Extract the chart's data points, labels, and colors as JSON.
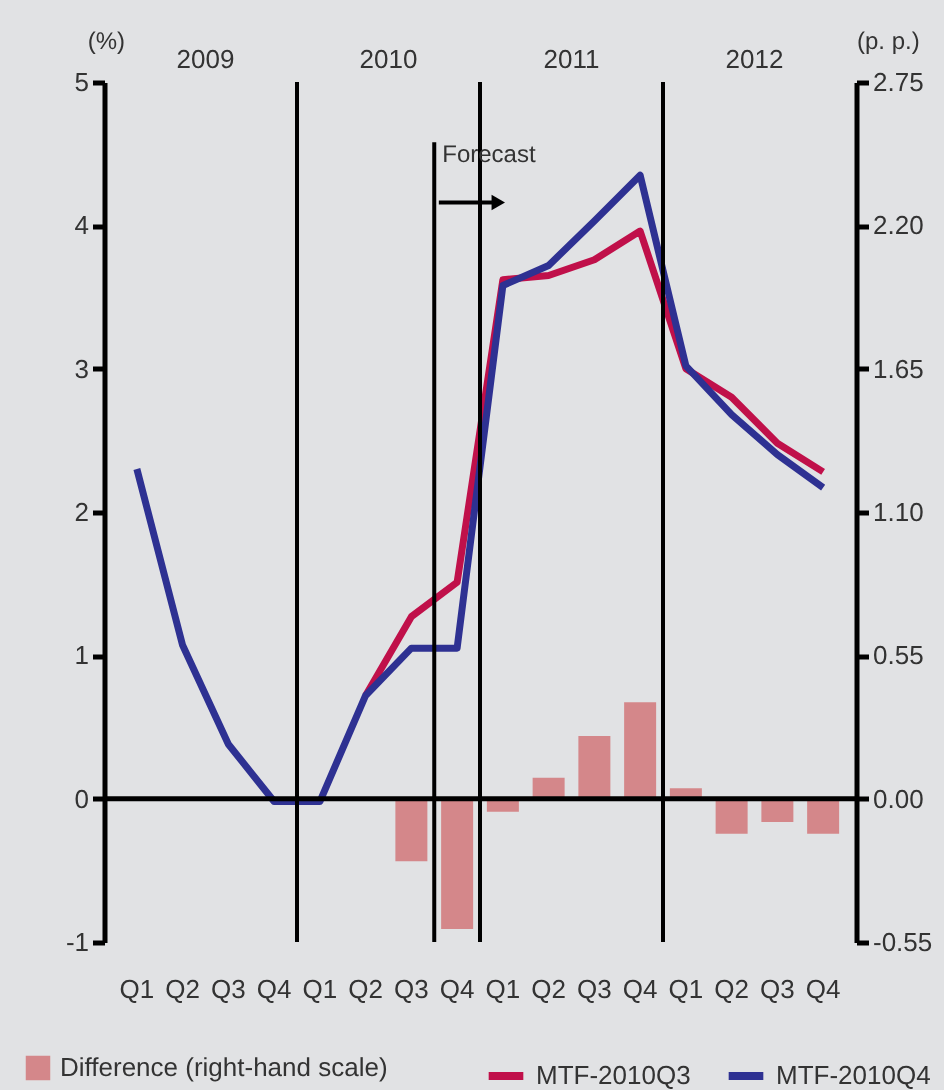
{
  "chart_data": {
    "type": "line",
    "categories": [
      "Q1",
      "Q2",
      "Q3",
      "Q4",
      "Q1",
      "Q2",
      "Q3",
      "Q4",
      "Q1",
      "Q2",
      "Q3",
      "Q4",
      "Q1",
      "Q2",
      "Q3",
      "Q4"
    ],
    "series": [
      {
        "name": "Difference (right-hand scale)",
        "type": "bar",
        "axis": "y2",
        "color": "#d4878a",
        "values": [
          null,
          null,
          null,
          null,
          null,
          null,
          -0.24,
          -0.5,
          -0.05,
          0.08,
          0.24,
          0.37,
          0.04,
          -0.135,
          -0.09,
          -0.135
        ]
      },
      {
        "name": "MTF-2010Q3",
        "color": "#c0104a",
        "values": [
          null,
          null,
          null,
          null,
          null,
          0.72,
          1.27,
          1.51,
          3.62,
          3.65,
          3.76,
          3.96,
          3.0,
          2.8,
          2.48,
          2.28
        ]
      },
      {
        "name": "MTF-2010Q4",
        "color": "#2e3192",
        "values": [
          2.3,
          1.07,
          0.38,
          -0.02,
          -0.02,
          0.72,
          1.05,
          1.05,
          3.58,
          3.72,
          4.03,
          4.35,
          3.02,
          2.68,
          2.4,
          2.17
        ]
      }
    ],
    "ylabel": "(%)",
    "y2label": "(p. p.)",
    "ylim": [
      -1,
      5
    ],
    "yticks": [
      -1,
      0,
      1,
      2,
      3,
      4,
      5
    ],
    "y2lim": [
      -0.55,
      2.75
    ],
    "y2ticks": [
      {
        "value": -0.55,
        "label": "-0.55"
      },
      {
        "value": 0,
        "label": "0.00"
      },
      {
        "value": 0.55,
        "label": "0.55"
      },
      {
        "value": 1.1,
        "label": "1.10"
      },
      {
        "value": 1.65,
        "label": "1.65"
      },
      {
        "value": 2.2,
        "label": "2.20"
      },
      {
        "value": 2.75,
        "label": "2.75"
      }
    ],
    "annotations": [
      "2009",
      "2010",
      "2011",
      "2012",
      "Forecast"
    ],
    "ref_lines": [
      {
        "axis": "y",
        "value": 0,
        "color": "#000000"
      }
    ],
    "grid": false,
    "legend": "bottom",
    "marker": "none",
    "line_style": "solid"
  }
}
